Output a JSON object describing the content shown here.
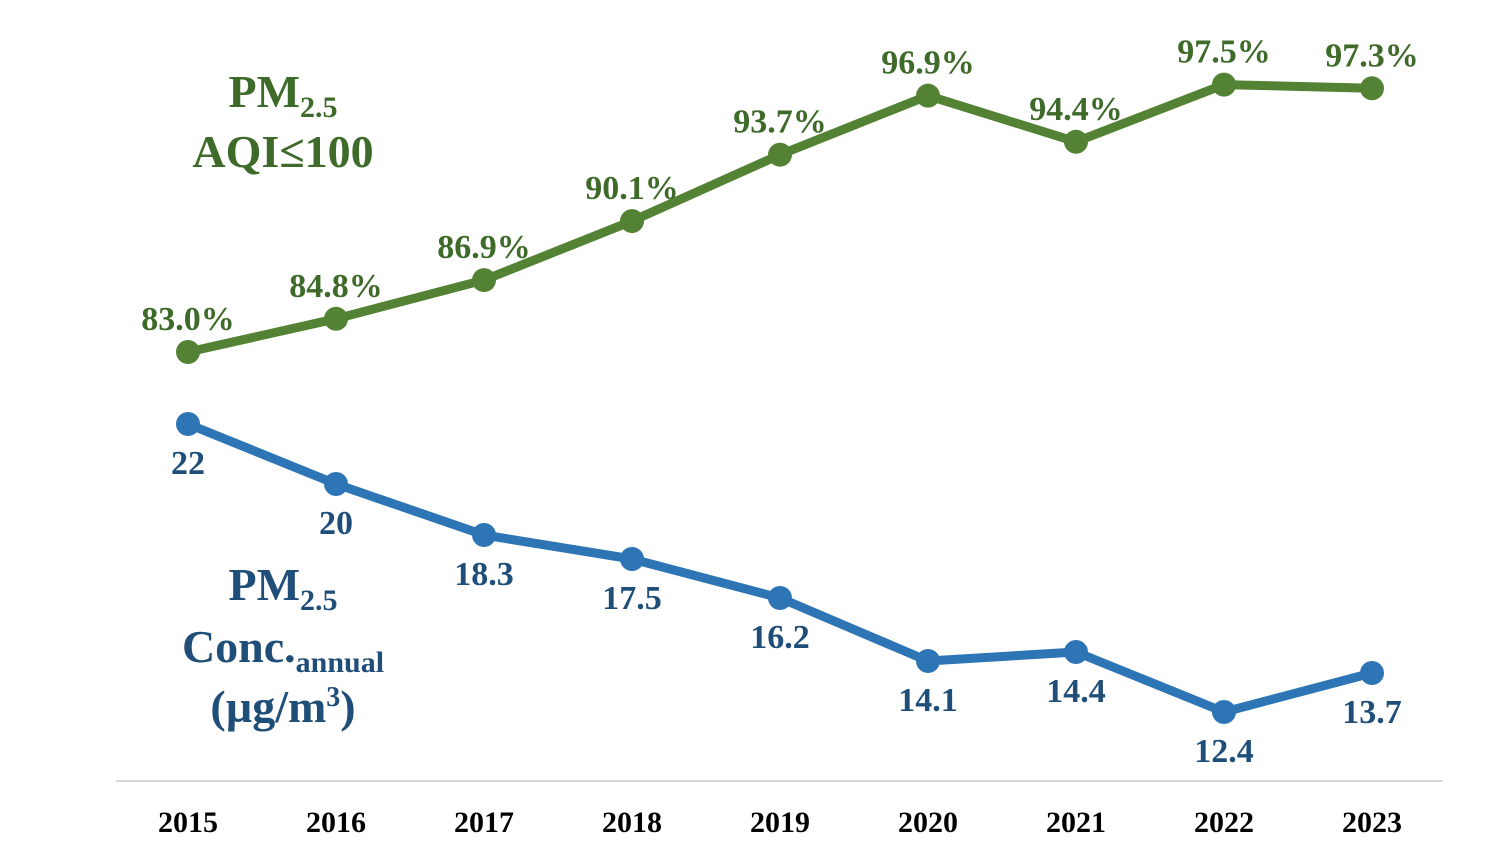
{
  "chart_data": {
    "type": "line",
    "categories": [
      "2015",
      "2016",
      "2017",
      "2018",
      "2019",
      "2020",
      "2021",
      "2022",
      "2023"
    ],
    "series": [
      {
        "id": "aqi",
        "values": [
          83.0,
          84.8,
          86.9,
          90.1,
          93.7,
          96.9,
          94.4,
          97.5,
          97.3
        ],
        "labels": [
          "83.0%",
          "84.8%",
          "86.9%",
          "90.1%",
          "93.7%",
          "96.9%",
          "94.4%",
          "97.5%",
          "97.3%"
        ],
        "unit": "%",
        "color": "#548235"
      },
      {
        "id": "conc",
        "values": [
          22,
          20,
          18.3,
          17.5,
          16.2,
          14.1,
          14.4,
          12.4,
          13.7
        ],
        "labels": [
          "22",
          "20",
          "18.3",
          "17.5",
          "16.2",
          "14.1",
          "14.4",
          "12.4",
          "13.7"
        ],
        "unit": "µg/m3",
        "color": "#2E75B6"
      }
    ],
    "series_titles": {
      "aqi": {
        "line1_main": "PM",
        "line1_sub": "2.5",
        "line2": "AQI≤100"
      },
      "conc": {
        "line1_main": "PM",
        "line1_sub": "2.5",
        "line2_main": "Conc.",
        "line2_sub": "annual",
        "line3_main": "(µg/m",
        "line3_sup": "3",
        "line3_end": ")"
      }
    },
    "label_colors": {
      "aqi": "#3E6B2A",
      "conc": "#1F4E79"
    },
    "axis_color": "#D9D9D9",
    "grid": false,
    "legend": "none"
  }
}
